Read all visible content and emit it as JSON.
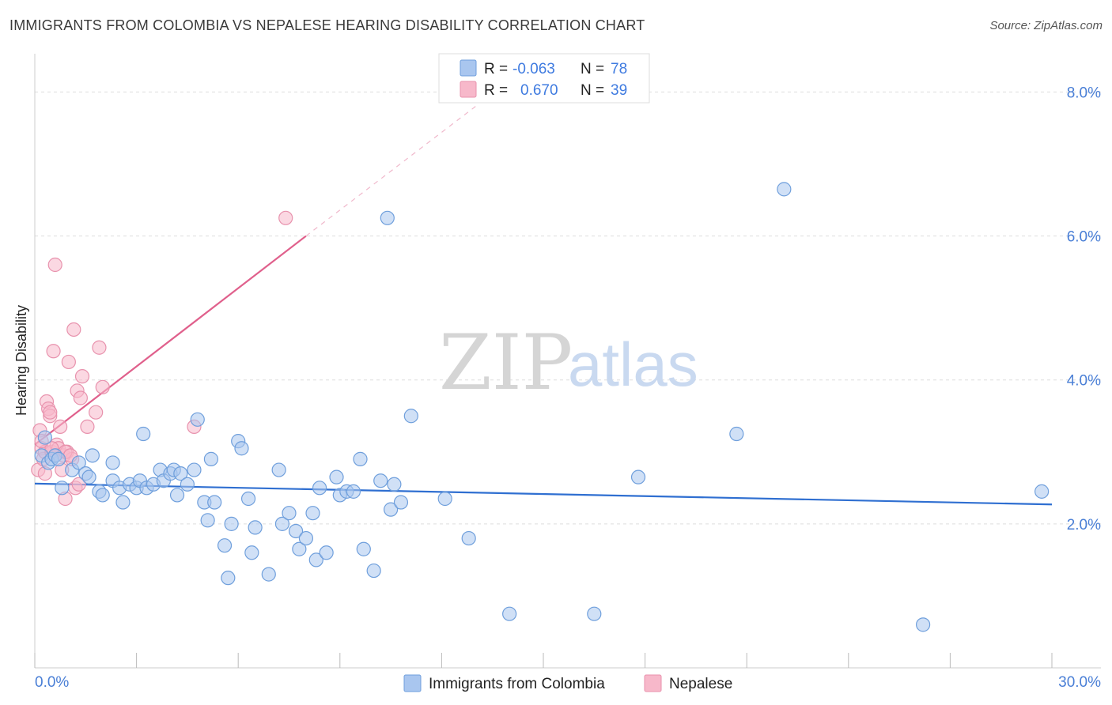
{
  "header": {
    "title": "IMMIGRANTS FROM COLOMBIA VS NEPALESE HEARING DISABILITY CORRELATION CHART",
    "source": "Source: ZipAtlas.com"
  },
  "watermark": {
    "zip": "ZIP",
    "atlas": "atlas"
  },
  "legend": {
    "rows": [
      {
        "r_label": "R =",
        "r_value": "-0.063",
        "n_label": "N =",
        "n_value": "78"
      },
      {
        "r_label": "R =",
        "r_value": "0.670",
        "n_label": "N =",
        "n_value": "39"
      }
    ]
  },
  "bottom_legend": {
    "items": [
      "Immigrants from Colombia",
      "Nepalese"
    ]
  },
  "colors": {
    "blue_fill": "#a9c6ef",
    "blue_stroke": "#6f9fdc",
    "blue_line": "#2f6fd1",
    "pink_fill": "#f7b8ca",
    "pink_stroke": "#e892ad",
    "pink_line": "#e0608c",
    "grid": "#dddddd",
    "tick_text": "#4a7fd6"
  },
  "chart_data": {
    "type": "scatter",
    "title": "IMMIGRANTS FROM COLOMBIA VS NEPALESE HEARING DISABILITY CORRELATION CHART",
    "xlabel": "",
    "ylabel": "Hearing Disability",
    "xlim": [
      0,
      30
    ],
    "ylim": [
      0,
      8.4
    ],
    "x_tick_labels": [
      "0.0%",
      "30.0%"
    ],
    "y_ticks": [
      2,
      4,
      6,
      8
    ],
    "y_tick_labels": [
      "2.0%",
      "4.0%",
      "6.0%",
      "8.0%"
    ],
    "grid": true,
    "legend_position": "top-center",
    "series": [
      {
        "name": "Immigrants from Colombia",
        "r": -0.063,
        "n": 78,
        "trend": {
          "x": [
            0,
            30
          ],
          "y": [
            2.56,
            2.27
          ]
        },
        "points": [
          [
            0.2,
            2.95
          ],
          [
            0.4,
            2.85
          ],
          [
            0.5,
            2.9
          ],
          [
            0.6,
            2.95
          ],
          [
            0.7,
            2.9
          ],
          [
            0.8,
            2.5
          ],
          [
            1.1,
            2.75
          ],
          [
            1.3,
            2.85
          ],
          [
            1.5,
            2.7
          ],
          [
            1.6,
            2.65
          ],
          [
            1.7,
            2.95
          ],
          [
            1.9,
            2.45
          ],
          [
            2.0,
            2.4
          ],
          [
            2.3,
            2.6
          ],
          [
            2.3,
            2.85
          ],
          [
            2.5,
            2.5
          ],
          [
            2.6,
            2.3
          ],
          [
            2.8,
            2.55
          ],
          [
            3.0,
            2.5
          ],
          [
            3.1,
            2.6
          ],
          [
            3.2,
            3.25
          ],
          [
            3.3,
            2.5
          ],
          [
            3.5,
            2.55
          ],
          [
            3.7,
            2.75
          ],
          [
            3.8,
            2.6
          ],
          [
            4.0,
            2.7
          ],
          [
            4.1,
            2.75
          ],
          [
            4.2,
            2.4
          ],
          [
            4.3,
            2.7
          ],
          [
            4.5,
            2.55
          ],
          [
            4.7,
            2.75
          ],
          [
            4.8,
            3.45
          ],
          [
            5.0,
            2.3
          ],
          [
            5.1,
            2.05
          ],
          [
            5.2,
            2.9
          ],
          [
            5.3,
            2.3
          ],
          [
            5.6,
            1.7
          ],
          [
            5.7,
            1.25
          ],
          [
            5.8,
            2.0
          ],
          [
            6.0,
            3.15
          ],
          [
            6.1,
            3.05
          ],
          [
            6.3,
            2.35
          ],
          [
            6.4,
            1.6
          ],
          [
            6.5,
            1.95
          ],
          [
            6.9,
            1.3
          ],
          [
            7.2,
            2.75
          ],
          [
            7.3,
            2.0
          ],
          [
            7.5,
            2.15
          ],
          [
            7.7,
            1.9
          ],
          [
            7.8,
            1.65
          ],
          [
            8.0,
            1.8
          ],
          [
            8.2,
            2.15
          ],
          [
            8.3,
            1.5
          ],
          [
            8.4,
            2.5
          ],
          [
            8.6,
            1.6
          ],
          [
            8.9,
            2.65
          ],
          [
            9.0,
            2.4
          ],
          [
            9.2,
            2.45
          ],
          [
            9.4,
            2.45
          ],
          [
            9.6,
            2.9
          ],
          [
            9.7,
            1.65
          ],
          [
            10.0,
            1.35
          ],
          [
            10.2,
            2.6
          ],
          [
            10.5,
            2.2
          ],
          [
            10.6,
            2.55
          ],
          [
            10.8,
            2.3
          ],
          [
            11.1,
            3.5
          ],
          [
            12.1,
            2.35
          ],
          [
            12.8,
            1.8
          ],
          [
            14.0,
            0.75
          ],
          [
            16.5,
            0.75
          ],
          [
            17.8,
            2.65
          ],
          [
            20.7,
            3.25
          ],
          [
            22.1,
            6.65
          ],
          [
            10.4,
            6.25
          ],
          [
            26.2,
            0.6
          ],
          [
            29.7,
            2.45
          ],
          [
            0.3,
            3.2
          ]
        ]
      },
      {
        "name": "Nepalese",
        "r": 0.67,
        "n": 39,
        "trend": {
          "x": [
            0,
            8.0
          ],
          "y": [
            3.1,
            6.0
          ]
        },
        "trend_dashed": {
          "x": [
            8.0,
            13.0
          ],
          "y": [
            6.0,
            7.8
          ]
        },
        "points": [
          [
            0.1,
            2.75
          ],
          [
            0.15,
            3.3
          ],
          [
            0.2,
            3.05
          ],
          [
            0.25,
            2.9
          ],
          [
            0.3,
            3.0
          ],
          [
            0.35,
            3.7
          ],
          [
            0.4,
            3.6
          ],
          [
            0.45,
            3.5
          ],
          [
            0.5,
            3.0
          ],
          [
            0.55,
            4.4
          ],
          [
            0.6,
            5.6
          ],
          [
            0.65,
            3.1
          ],
          [
            0.7,
            3.05
          ],
          [
            0.75,
            3.35
          ],
          [
            0.8,
            2.75
          ],
          [
            0.85,
            2.95
          ],
          [
            0.9,
            2.35
          ],
          [
            0.95,
            3.0
          ],
          [
            1.0,
            4.25
          ],
          [
            1.1,
            2.9
          ],
          [
            1.15,
            4.7
          ],
          [
            1.2,
            2.5
          ],
          [
            1.25,
            3.85
          ],
          [
            1.3,
            2.55
          ],
          [
            1.35,
            3.75
          ],
          [
            1.4,
            4.05
          ],
          [
            1.55,
            3.35
          ],
          [
            1.8,
            3.55
          ],
          [
            1.9,
            4.45
          ],
          [
            2.0,
            3.9
          ],
          [
            4.7,
            3.35
          ],
          [
            7.4,
            6.25
          ],
          [
            0.5,
            3.05
          ],
          [
            0.6,
            2.95
          ],
          [
            0.3,
            2.7
          ],
          [
            0.9,
            3.0
          ],
          [
            1.05,
            2.95
          ],
          [
            0.2,
            3.15
          ],
          [
            0.45,
            3.55
          ]
        ]
      }
    ]
  }
}
